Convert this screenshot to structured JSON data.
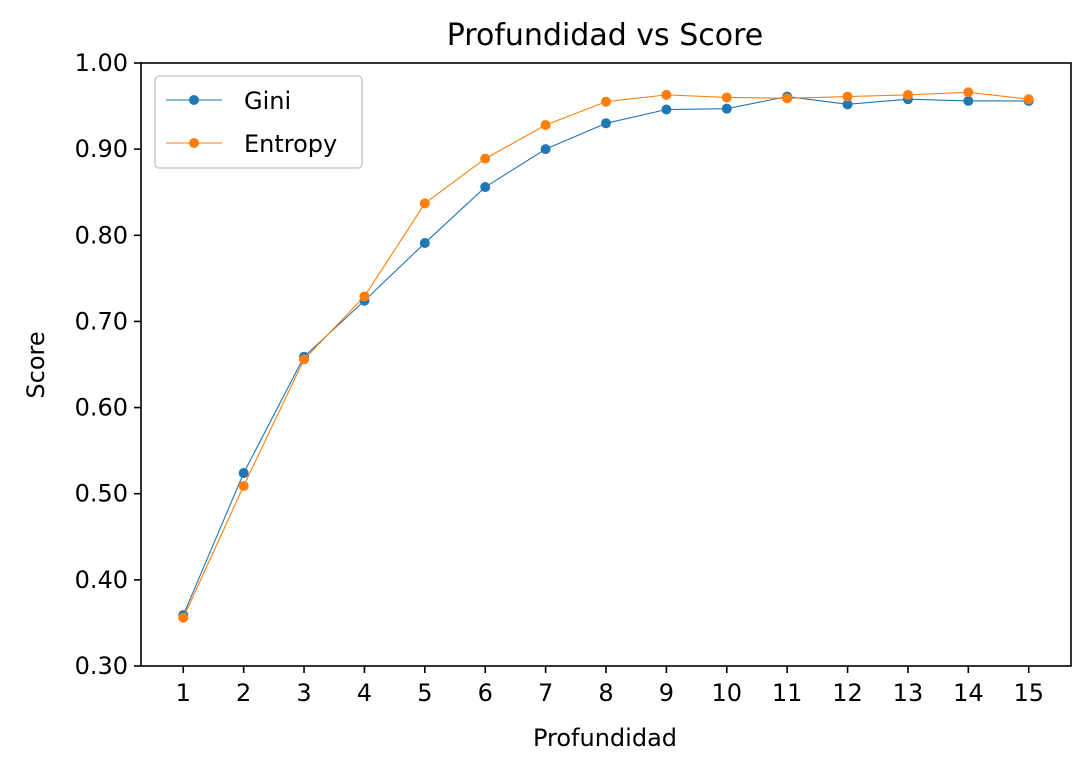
{
  "chart_data": {
    "type": "line",
    "title": "Profundidad vs Score",
    "xlabel": "Profundidad",
    "ylabel": "Score",
    "x": [
      1,
      2,
      3,
      4,
      5,
      6,
      7,
      8,
      9,
      10,
      11,
      12,
      13,
      14,
      15
    ],
    "xticks": [
      "1",
      "2",
      "3",
      "4",
      "5",
      "6",
      "7",
      "8",
      "9",
      "10",
      "11",
      "12",
      "13",
      "14",
      "15"
    ],
    "yticks": [
      "0.30",
      "0.40",
      "0.50",
      "0.60",
      "0.70",
      "0.80",
      "0.90",
      "1.00"
    ],
    "ylim": [
      0.3,
      1.0
    ],
    "xlim": [
      0.3,
      15.7
    ],
    "grid": false,
    "legend_position": "top-left",
    "series": [
      {
        "name": "Gini",
        "color": "#1f77b4",
        "values": [
          0.359,
          0.524,
          0.659,
          0.724,
          0.791,
          0.856,
          0.9,
          0.93,
          0.946,
          0.947,
          0.961,
          0.952,
          0.958,
          0.956,
          0.956
        ]
      },
      {
        "name": "Entropy",
        "color": "#ff7f0e",
        "values": [
          0.356,
          0.509,
          0.656,
          0.729,
          0.837,
          0.889,
          0.928,
          0.955,
          0.963,
          0.96,
          0.959,
          0.961,
          0.963,
          0.966,
          0.958
        ]
      }
    ]
  }
}
